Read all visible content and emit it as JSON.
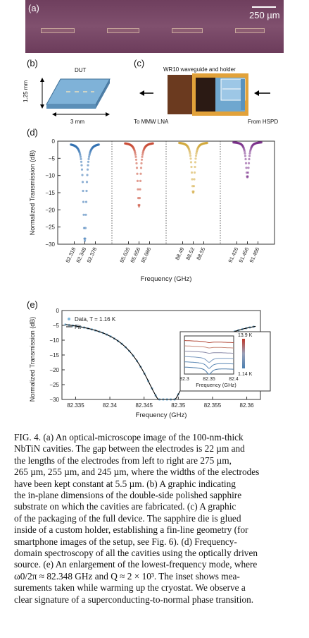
{
  "panel_labels": {
    "a": "(a)",
    "b": "(b)",
    "c": "(c)",
    "d": "(d)",
    "e": "(e)"
  },
  "panel_a": {
    "scale_bar": "250 µm",
    "background": "#7a4a66"
  },
  "panel_b": {
    "title": "DUT",
    "height_label": "1.25 mm",
    "width_label": "3 mm"
  },
  "panel_c": {
    "title": "WR10 waveguide and holder",
    "left_label": "To MMW LNA",
    "right_label": "From HSPD"
  },
  "panel_d": {
    "ylabel": "Normalized Transmission (dB)",
    "xlabel": "Frequency (GHz)",
    "yticks": [
      "0",
      "−5",
      "−10",
      "−15",
      "−20",
      "−25",
      "−30"
    ],
    "subplots": [
      {
        "ticks": [
          "82.318",
          "82.348",
          "82.378"
        ],
        "color": "#2f6fb0"
      },
      {
        "ticks": [
          "85.626",
          "85.656",
          "85.686"
        ],
        "color": "#c84a35"
      },
      {
        "ticks": [
          "88.49",
          "88.52",
          "88.55"
        ],
        "color": "#d2a83a"
      },
      {
        "ticks": [
          "91.426",
          "91.456",
          "91.486"
        ],
        "color": "#7a2f8a"
      }
    ]
  },
  "chart_data": [
    {
      "type": "line",
      "ylabel": "Normalized Transmission (dB)",
      "xlabel": "Frequency (GHz)",
      "ylim": [
        -30,
        0
      ],
      "series": [
        {
          "x_center": 82.348,
          "depth_db": -29,
          "ticks": [
            82.318,
            82.348,
            82.378
          ]
        },
        {
          "x_center": 85.656,
          "depth_db": -19,
          "ticks": [
            85.626,
            85.656,
            85.686
          ]
        },
        {
          "x_center": 88.52,
          "depth_db": -15,
          "ticks": [
            88.49,
            88.52,
            88.55
          ]
        },
        {
          "x_center": 91.456,
          "depth_db": -10.5,
          "ticks": [
            91.426,
            91.456,
            91.486
          ]
        }
      ]
    },
    {
      "type": "line",
      "ylabel": "Normalized Transmission (dB)",
      "xlabel": "Frequency (GHz)",
      "xlim": [
        82.333,
        82.362
      ],
      "ylim": [
        -30,
        0
      ],
      "xticks": [
        "82.335",
        "82.34",
        "82.345",
        "82.35",
        "82.355",
        "82.36"
      ],
      "yticks": [
        "0",
        "−5",
        "−10",
        "−15",
        "−20",
        "−25",
        "−30"
      ],
      "series": [
        {
          "name": "Data, T = 1.16 K",
          "x_center": 82.3483,
          "min_db": -30,
          "edge_db": -4
        },
        {
          "name": "Fit",
          "x_center": 82.3483,
          "min_db": -30,
          "edge_db": -4
        }
      ],
      "inset": {
        "xticks": [
          "82.3",
          "82.35",
          "82.4"
        ],
        "xlabel": "Frequency (GHz)",
        "top_label": "13.9 K",
        "bottom_label": "1.14 K"
      }
    }
  ],
  "panel_e": {
    "legend_data": "Data, T = 1.16 K",
    "legend_fit": "Fit",
    "xticks": [
      "82.335",
      "82.34",
      "82.345",
      "82.35",
      "82.355",
      "82.36"
    ],
    "yticks": [
      "0",
      "−5",
      "−10",
      "−15",
      "−20",
      "−25",
      "−30"
    ],
    "xlabel": "Frequency (GHz)",
    "ylabel": "Normalized Transmission (dB)",
    "inset_xticks": [
      "82.3",
      "82.35",
      "82.4"
    ],
    "inset_xlabel": "Frequency (GHz)",
    "inset_top": "13.9 K",
    "inset_bottom": "1.14 K"
  },
  "caption": [
    "FIG. 4.   (a) An optical-microscope image of the 100-nm-thick",
    "NbTiN cavities. The gap between the electrodes is 22 µm and",
    "the lengths of the electrodes from left to right are 275 µm,",
    "265 µm, 255 µm, and 245 µm, where the widths of the electrodes",
    "have been kept constant at 5.5 µm. (b) A graphic indicating",
    "the in-plane dimensions of the double-side polished sapphire",
    "substrate on which the cavities are fabricated. (c) A graphic",
    "of the packaging of the full device. The sapphire die is glued",
    "inside of a custom holder, establishing a fin-line geometry (for",
    "smartphone images of the setup, see Fig. 6). (d) Frequency-",
    "domain spectroscopy of all the cavities using the optically driven",
    "source. (e) An enlargement of the lowest-frequency mode, where",
    "ω0/2π ≈ 82.348 GHz and Q ≈ 2 × 10³. The inset shows mea-",
    "surements taken while warming up the cryostat. We observe a",
    "clear signature of a superconducting-to-normal phase transition."
  ]
}
